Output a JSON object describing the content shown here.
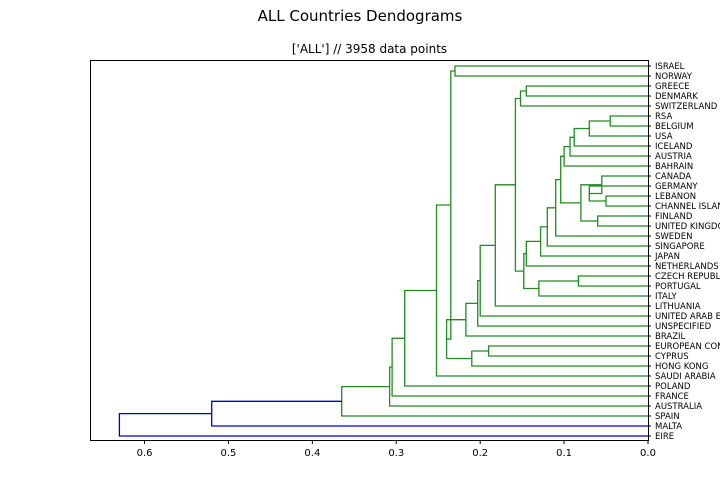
{
  "figure": {
    "title": "ALL Countries Dendograms",
    "subtitle": "['ALL'] // 3958 data points"
  },
  "colors": {
    "cluster_green": "#228B22",
    "cluster_blue": "#0000CD",
    "above_threshold": "#0000CD"
  },
  "chart_data": {
    "type": "dendrogram",
    "orientation": "left",
    "title": "ALL Countries Dendograms",
    "subtitle": "['ALL'] // 3958 data points",
    "xlim": [
      0.665,
      0.0
    ],
    "xticks": [
      0.6,
      0.5,
      0.4,
      0.3,
      0.2,
      0.1,
      0.0
    ],
    "xtick_labels": [
      "0.6",
      "0.5",
      "0.4",
      "0.3",
      "0.2",
      "0.1",
      "0.0"
    ],
    "leaves": [
      "ISRAEL",
      "NORWAY",
      "GREECE",
      "DENMARK",
      "SWITZERLAND",
      "RSA",
      "BELGIUM",
      "USA",
      "ICELAND",
      "AUSTRIA",
      "BAHRAIN",
      "CANADA",
      "GERMANY",
      "LEBANON",
      "CHANNEL ISLANDS",
      "FINLAND",
      "UNITED KINGDOM",
      "SWEDEN",
      "SINGAPORE",
      "JAPAN",
      "NETHERLANDS",
      "CZECH REPUBLIC",
      "PORTUGAL",
      "ITALY",
      "LITHUANIA",
      "UNITED ARAB EMIRATES",
      "UNSPECIFIED",
      "BRAZIL",
      "EUROPEAN COMMUNITY",
      "CYPRUS",
      "HONG KONG",
      "SAUDI ARABIA",
      "POLAND",
      "FRANCE",
      "AUSTRALIA",
      "SPAIN",
      "MALTA",
      "EIRE"
    ],
    "merges": [
      {
        "id": "a1",
        "left": "ISRAEL",
        "right": "NORWAY",
        "distance": 0.23,
        "color": "green"
      },
      {
        "id": "a2",
        "left": "GREECE",
        "right": "DENMARK",
        "distance": 0.145,
        "color": "green"
      },
      {
        "id": "a3",
        "left": "a2",
        "right": "SWITZERLAND",
        "distance": 0.152,
        "color": "green"
      },
      {
        "id": "b1",
        "left": "RSA",
        "right": "BELGIUM",
        "distance": 0.045,
        "color": "green"
      },
      {
        "id": "b2",
        "left": "b1",
        "right": "USA",
        "distance": 0.07,
        "color": "green"
      },
      {
        "id": "b3",
        "left": "b2",
        "right": "ICELAND",
        "distance": 0.088,
        "color": "green"
      },
      {
        "id": "b4",
        "left": "b3",
        "right": "AUSTRIA",
        "distance": 0.093,
        "color": "green"
      },
      {
        "id": "b5",
        "left": "b4",
        "right": "BAHRAIN",
        "distance": 0.1,
        "color": "green"
      },
      {
        "id": "c1",
        "left": "LEBANON",
        "right": "CHANNEL ISLANDS",
        "distance": 0.05,
        "color": "green"
      },
      {
        "id": "c2",
        "left": "GERMANY",
        "right": "c1",
        "distance": 0.07,
        "color": "green"
      },
      {
        "id": "c3",
        "left": "CANADA",
        "right": "c2",
        "distance": 0.055,
        "color": "green"
      },
      {
        "id": "c4",
        "left": "FINLAND",
        "right": "UNITED KINGDOM",
        "distance": 0.06,
        "color": "green"
      },
      {
        "id": "c5",
        "left": "c3",
        "right": "c4",
        "distance": 0.08,
        "color": "green"
      },
      {
        "id": "c6",
        "left": "b5",
        "right": "c5",
        "distance": 0.104,
        "color": "green"
      },
      {
        "id": "c7",
        "left": "c6",
        "right": "SWEDEN",
        "distance": 0.11,
        "color": "green"
      },
      {
        "id": "c8",
        "left": "c7",
        "right": "SINGAPORE",
        "distance": 0.12,
        "color": "green"
      },
      {
        "id": "c9",
        "left": "c8",
        "right": "JAPAN",
        "distance": 0.128,
        "color": "green"
      },
      {
        "id": "c10",
        "left": "c9",
        "right": "NETHERLANDS",
        "distance": 0.145,
        "color": "green"
      },
      {
        "id": "d1",
        "left": "CZECH REPUBLIC",
        "right": "PORTUGAL",
        "distance": 0.083,
        "color": "green"
      },
      {
        "id": "d2",
        "left": "d1",
        "right": "ITALY",
        "distance": 0.13,
        "color": "green"
      },
      {
        "id": "d3",
        "left": "c10",
        "right": "d2",
        "distance": 0.148,
        "color": "green"
      },
      {
        "id": "d4",
        "left": "a3",
        "right": "d3",
        "distance": 0.158,
        "color": "green"
      },
      {
        "id": "e1",
        "left": "d4",
        "right": "LITHUANIA",
        "distance": 0.182,
        "color": "green"
      },
      {
        "id": "e2",
        "left": "e1",
        "right": "UNITED ARAB EMIRATES",
        "distance": 0.2,
        "color": "green"
      },
      {
        "id": "e3",
        "left": "e2",
        "right": "UNSPECIFIED",
        "distance": 0.203,
        "color": "green"
      },
      {
        "id": "e4",
        "left": "e3",
        "right": "BRAZIL",
        "distance": 0.217,
        "color": "green"
      },
      {
        "id": "f1",
        "left": "EUROPEAN COMMUNITY",
        "right": "CYPRUS",
        "distance": 0.19,
        "color": "green"
      },
      {
        "id": "f2",
        "left": "f1",
        "right": "HONG KONG",
        "distance": 0.21,
        "color": "green"
      },
      {
        "id": "f3",
        "left": "e4",
        "right": "f2",
        "distance": 0.24,
        "color": "green"
      },
      {
        "id": "f4",
        "left": "a1",
        "right": "f3",
        "distance": 0.235,
        "color": "green"
      },
      {
        "id": "f5",
        "left": "f4",
        "right": "SAUDI ARABIA",
        "distance": 0.252,
        "color": "green"
      },
      {
        "id": "f6",
        "left": "f5",
        "right": "POLAND",
        "distance": 0.29,
        "color": "green"
      },
      {
        "id": "f7",
        "left": "f6",
        "right": "FRANCE",
        "distance": 0.305,
        "color": "green"
      },
      {
        "id": "f8",
        "left": "f7",
        "right": "AUSTRALIA",
        "distance": 0.308,
        "color": "green"
      },
      {
        "id": "f9",
        "left": "f8",
        "right": "SPAIN",
        "distance": 0.365,
        "color": "green"
      },
      {
        "id": "g1",
        "left": "f9",
        "right": "MALTA",
        "distance": 0.52,
        "color": "blue"
      },
      {
        "id": "g2",
        "left": "g1",
        "right": "EIRE",
        "distance": 0.63,
        "color": "blue"
      }
    ]
  }
}
